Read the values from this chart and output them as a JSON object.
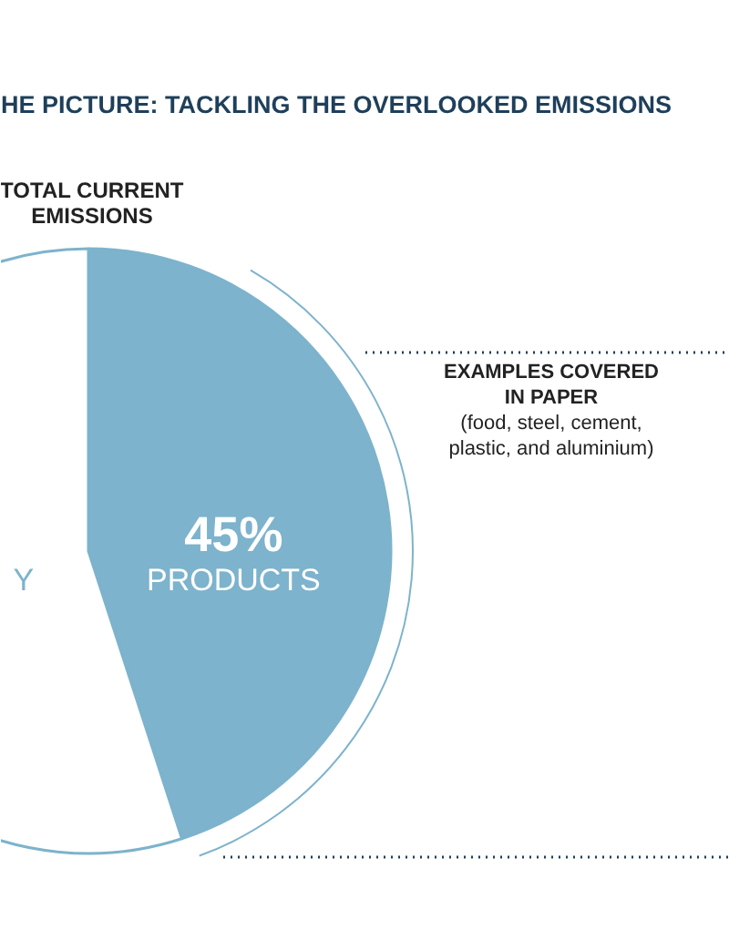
{
  "chart_data": {
    "type": "pie",
    "title": "HE PICTURE: TACKLING THE OVERLOOKED EMISSIONS",
    "categories": [
      "PRODUCTS",
      "Y"
    ],
    "values": [
      45,
      55
    ],
    "colors": [
      "#7db3cc",
      "#ffffff"
    ],
    "value_labels": [
      "45%",
      null
    ],
    "annotations": [
      "TOTAL CURRENT\nEMISSIONS",
      "EXAMPLES COVERED\nIN PAPER\n(food, steel, cement,\nplastic, and aluminium)"
    ]
  }
}
